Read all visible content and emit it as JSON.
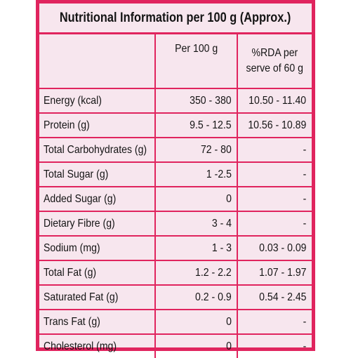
{
  "title": "Nutritional Information per 100 g (Approx.)",
  "header": {
    "col1": "",
    "col2": "Per 100 g",
    "col3_line1": "%RDA per",
    "col3_line2": "serve of 60 g"
  },
  "rows": [
    {
      "name": "Energy (kcal)",
      "per100g": "350 - 380",
      "rda": "10.50 - 11.40"
    },
    {
      "name": "Protein (g)",
      "per100g": "9.5 - 12.5",
      "rda": "10.56 - 10.89"
    },
    {
      "name": "Total Carbohydrates (g)",
      "per100g": "72 - 80",
      "rda": "-"
    },
    {
      "name": "Total Sugar (g)",
      "per100g": "1 -2.5",
      "rda": "-"
    },
    {
      "name": "Added Sugar (g)",
      "per100g": "0",
      "rda": "-"
    },
    {
      "name": "Dietary Fibre (g)",
      "per100g": "3 - 4",
      "rda": "-"
    },
    {
      "name": "Sodium (mg)",
      "per100g": "1 - 3",
      "rda": "0.03 - 0.09"
    },
    {
      "name": "Total Fat (g)",
      "per100g": "1.2 - 2.2",
      "rda": "1.07 - 1.97"
    },
    {
      "name": "Saturated Fat (g)",
      "per100g": "0.2 - 0.9",
      "rda": "0.54 - 2.45"
    },
    {
      "name": "Trans Fat (g)",
      "per100g": "0",
      "rda": "-"
    },
    {
      "name": "Cholesterol (mg)",
      "per100g": "0",
      "rda": "-"
    }
  ],
  "colors": {
    "border": "#e0245e",
    "background": "#f7e6ee",
    "text": "#141414"
  }
}
